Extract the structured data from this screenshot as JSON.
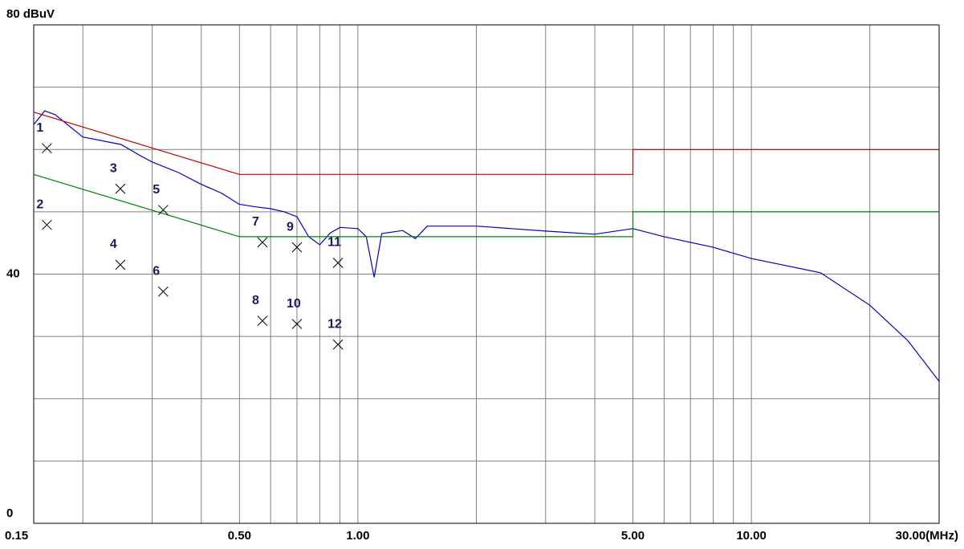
{
  "chart_data": {
    "type": "line",
    "xscale": "log",
    "xlim": [
      0.15,
      30
    ],
    "ylim": [
      0,
      80
    ],
    "xticks": [
      0.15,
      {
        "value": 0.5,
        "label": "0.50"
      },
      {
        "value": 1,
        "label": "1.00"
      },
      {
        "value": 5,
        "label": "5.00"
      },
      {
        "value": 10,
        "label": "10.00"
      },
      {
        "value": 30,
        "label": "30.00(MHz)"
      }
    ],
    "yticks": [
      0,
      40,
      {
        "value": 80,
        "label": "80 dBuV"
      }
    ],
    "xgrid": [
      0.2,
      0.3,
      0.4,
      0.5,
      0.6,
      0.7,
      0.8,
      0.9,
      1,
      2,
      3,
      4,
      5,
      6,
      7,
      8,
      9,
      10,
      20
    ],
    "ygrid": [
      10,
      20,
      30,
      40,
      50,
      60,
      70
    ],
    "grid": true,
    "series": [
      {
        "color": "#0000c0",
        "x": [
          0.15,
          0.16,
          0.17,
          0.2,
          0.25,
          0.28,
          0.3,
          0.35,
          0.4,
          0.45,
          0.5,
          0.55,
          0.6,
          0.65,
          0.7,
          0.75,
          0.8,
          0.85,
          0.9,
          1.0,
          1.05,
          1.1,
          1.15,
          1.3,
          1.4,
          1.5,
          2,
          3,
          4,
          5,
          6,
          8,
          10,
          15,
          20,
          25,
          30
        ],
        "values": [
          64,
          66.2,
          65.6,
          62,
          60.8,
          59,
          58,
          56.3,
          54.4,
          53,
          51.2,
          50.8,
          50.5,
          50,
          49.2,
          46,
          44.7,
          46.6,
          47.5,
          47.3,
          46,
          39.5,
          46.5,
          47,
          45.7,
          47.7,
          47.7,
          46.9,
          46.4,
          47.3,
          46,
          44.3,
          42.5,
          40.2,
          35,
          29.3,
          22.8
        ]
      },
      {
        "color": "#c00000",
        "x": [
          0.15,
          0.5,
          5,
          5,
          30
        ],
        "values": [
          66,
          56,
          56,
          60,
          60
        ]
      },
      {
        "color": "#008000",
        "x": [
          0.15,
          0.5,
          5,
          5,
          30
        ],
        "values": [
          56,
          46,
          46,
          50,
          50
        ]
      },
      {
        "type": "scatter",
        "color": "#000000",
        "x": [
          0.162,
          0.162,
          0.249,
          0.249,
          0.32,
          0.32,
          0.572,
          0.572,
          0.7,
          0.7,
          0.89,
          0.89
        ],
        "values": [
          60.2,
          47.9,
          53.7,
          41.5,
          50.3,
          37.2,
          45.1,
          32.5,
          44.3,
          32,
          41.8,
          28.7
        ],
        "labels": [
          "1",
          "2",
          "3",
          "4",
          "5",
          "6",
          "7",
          "8",
          "9",
          "10",
          "11",
          "12"
        ]
      }
    ]
  }
}
